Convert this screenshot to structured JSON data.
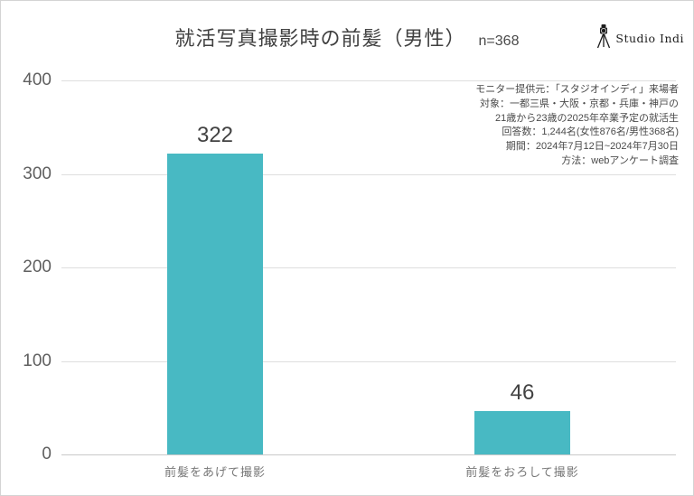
{
  "title": {
    "main": "就活写真撮影時の前髪（男性）",
    "sample": "n=368"
  },
  "logo": {
    "text": "Studio Indi",
    "icon": "camera-tripod-icon"
  },
  "annotation": {
    "lines": [
      "モニター提供元：「スタジオインディ」来場者",
      "対象：一都三県・大阪・京都・兵庫・神戸の",
      "21歳から23歳の2025年卒業予定の就活生",
      "回答数：1,244名(女性876名/男性368名)",
      "期間：2024年7月12日~2024年7月30日",
      "方法：webアンケート調査"
    ]
  },
  "chart_data": {
    "type": "bar",
    "title": "就活写真撮影時の前髪（男性）",
    "subtitle": "n=368",
    "categories": [
      "前髪をあげて撮影",
      "前髪をおろして撮影"
    ],
    "values": [
      322,
      46
    ],
    "xlabel": "",
    "ylabel": "",
    "ylim": [
      0,
      400
    ],
    "yticks": [
      0,
      100,
      200,
      300,
      400
    ],
    "grid": true,
    "legend": "none",
    "bar_color": "#48B9C3"
  },
  "colors": {
    "bar": "#48B9C3",
    "gridline": "#dedede",
    "baseline": "#c9c9c9",
    "title_text": "#404040",
    "tick_text": "#5f5f5f",
    "category_text": "#767676",
    "value_text": "#424242",
    "annotation_text": "#4a4a4a"
  }
}
